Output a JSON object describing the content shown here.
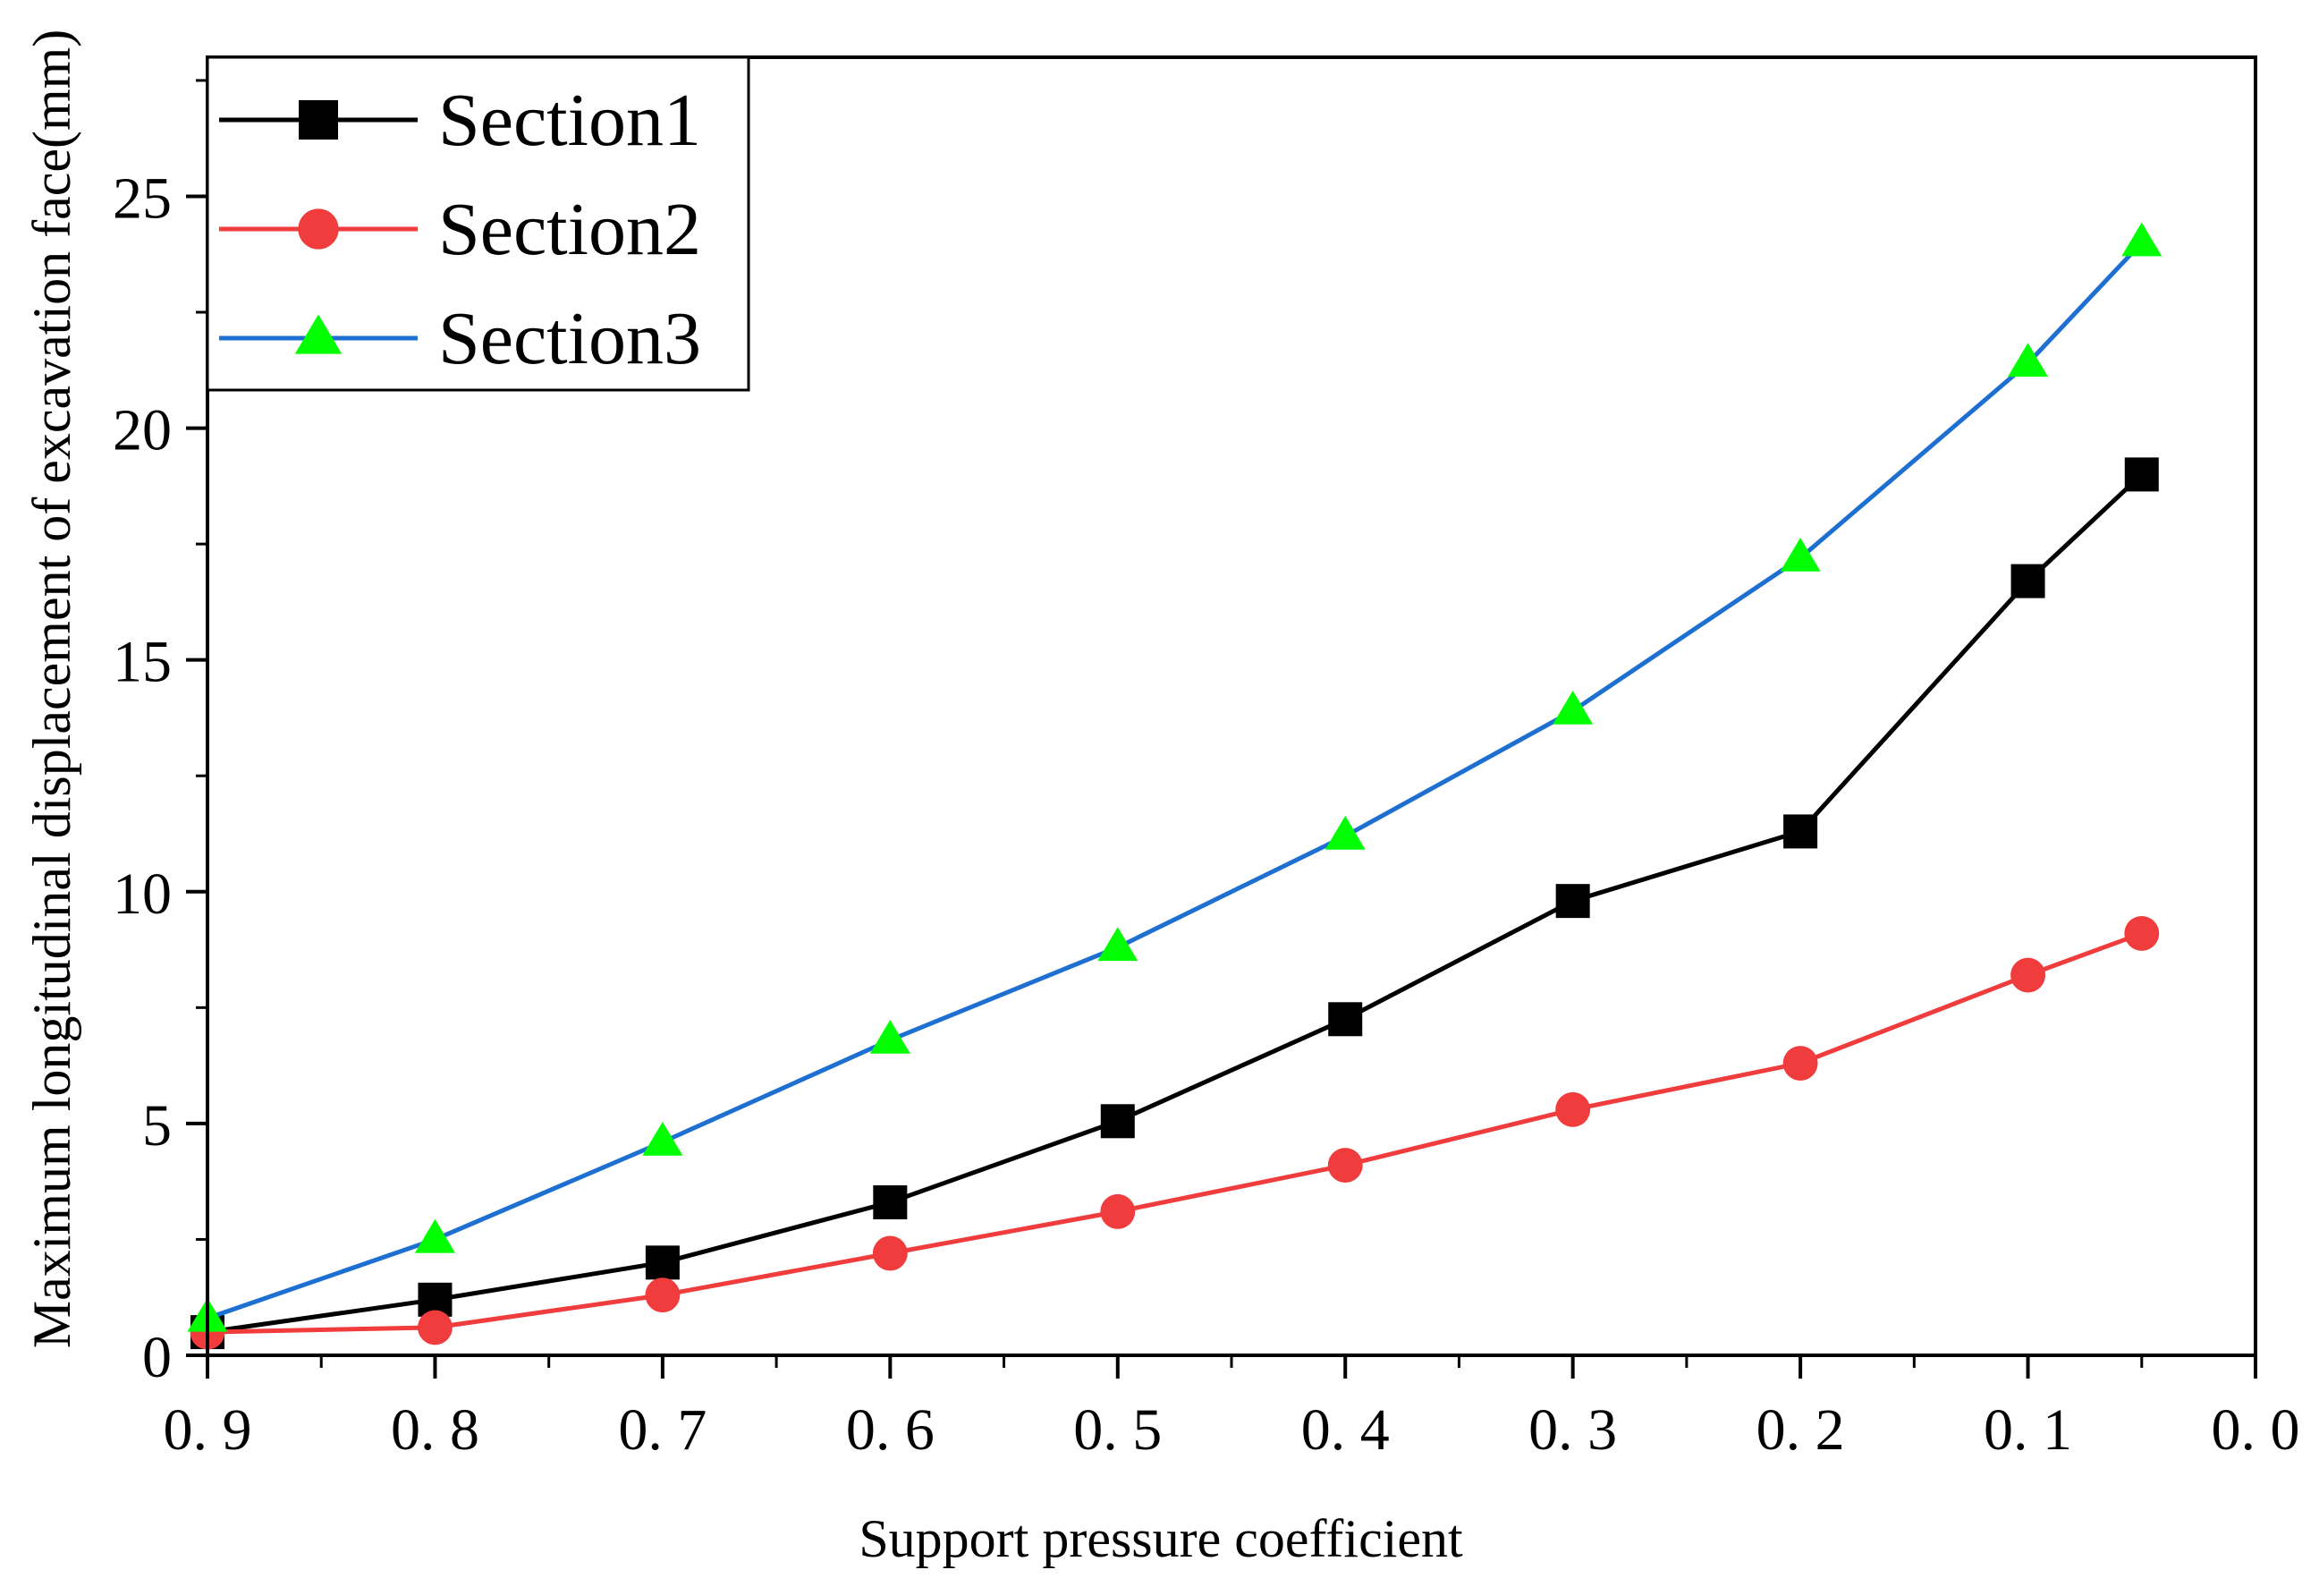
{
  "chart_data": {
    "type": "line",
    "title": "",
    "xlabel": "Support pressure coefficient",
    "ylabel": "Maximum longitudinal displacement of excavation face(mm)",
    "xlim": [
      0.9,
      0.0
    ],
    "ylim": [
      0,
      28
    ],
    "x_ticks": [
      0.9,
      0.8,
      0.7,
      0.6,
      0.5,
      0.4,
      0.3,
      0.2,
      0.1,
      0.0
    ],
    "x_tick_labels": [
      "0. 9",
      "0. 8",
      "0. 7",
      "0. 6",
      "0. 5",
      "0. 4",
      "0. 3",
      "0. 2",
      "0. 1",
      "0. 0"
    ],
    "y_ticks": [
      0,
      5,
      10,
      15,
      20,
      25
    ],
    "y_tick_labels": [
      "0",
      "5",
      "10",
      "15",
      "20",
      "25"
    ],
    "grid": false,
    "legend_position": "top-left",
    "x": [
      0.9,
      0.8,
      0.7,
      0.6,
      0.5,
      0.4,
      0.3,
      0.2,
      0.1,
      0.05
    ],
    "series": [
      {
        "name": "Section1",
        "marker": "square",
        "line_color": "#000000",
        "marker_color": "#000000",
        "values": [
          0.5,
          1.2,
          2.0,
          3.3,
          5.05,
          7.25,
          9.8,
          11.3,
          16.7,
          19.0
        ]
      },
      {
        "name": "Section2",
        "marker": "circle",
        "line_color": "#f03c3c",
        "marker_color": "#f03c3c",
        "values": [
          0.5,
          0.6,
          1.3,
          2.2,
          3.1,
          4.1,
          5.3,
          6.3,
          8.2,
          9.1
        ]
      },
      {
        "name": "Section3",
        "marker": "triangle",
        "line_color": "#1e6fd2",
        "marker_color": "#00ff00",
        "values": [
          0.8,
          2.5,
          4.6,
          6.8,
          8.8,
          11.2,
          13.9,
          17.2,
          21.4,
          24.0
        ]
      }
    ]
  }
}
